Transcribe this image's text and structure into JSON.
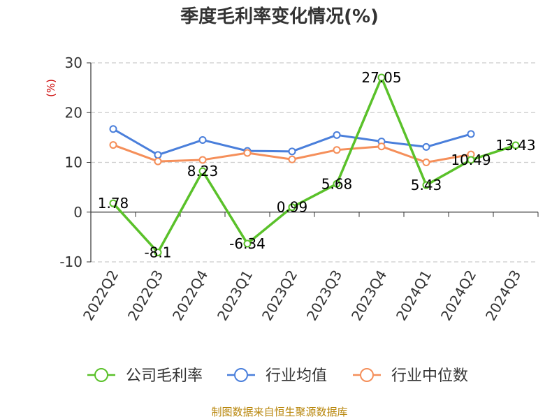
{
  "chart_data": {
    "type": "line",
    "title": "季度毛利率变化情况(%)",
    "ylabel": "(%)",
    "xlabel": "",
    "categories": [
      "2022Q2",
      "2022Q3",
      "2022Q4",
      "2023Q1",
      "2023Q2",
      "2023Q3",
      "2023Q4",
      "2024Q1",
      "2024Q2",
      "2024Q3"
    ],
    "ylim": [
      -10,
      30
    ],
    "yticks": [
      "30",
      "20",
      "10",
      "0",
      "-10"
    ],
    "grid": "horizontal dashed",
    "legend_position": "bottom",
    "series": [
      {
        "name": "公司毛利率",
        "color": "#5ac12a",
        "values": [
          1.78,
          -8.1,
          8.23,
          -6.34,
          0.99,
          5.68,
          27.05,
          5.43,
          10.49,
          13.43
        ],
        "labels": [
          "1.78",
          "-8.1",
          "8.23",
          "-6.34",
          "0.99",
          "5.68",
          "27.05",
          "5.43",
          "10.49",
          "13.43"
        ]
      },
      {
        "name": "行业均值",
        "color": "#4a7fdb",
        "values": [
          16.7,
          11.5,
          14.5,
          12.3,
          12.2,
          15.5,
          14.2,
          13.1,
          15.7,
          null
        ]
      },
      {
        "name": "行业中位数",
        "color": "#f58f5a",
        "values": [
          13.5,
          10.2,
          10.5,
          11.9,
          10.6,
          12.5,
          13.2,
          10.0,
          11.6,
          null
        ]
      }
    ]
  },
  "source": "制图数据来自恒生聚源数据库"
}
